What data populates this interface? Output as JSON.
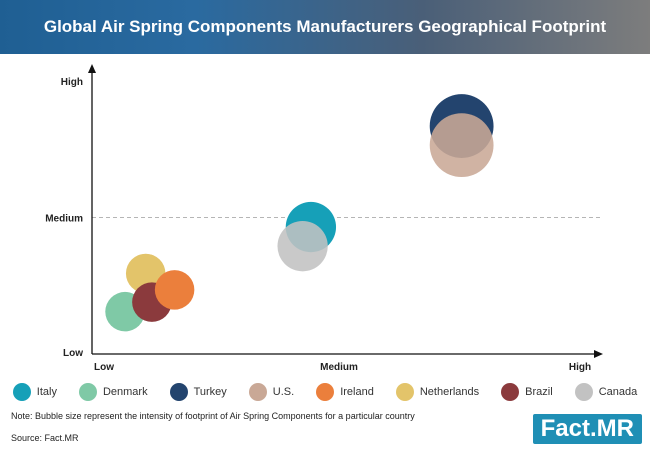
{
  "chart_data": {
    "type": "scatter",
    "title": "Global Air Spring Components Manufacturers Geographical Footprint",
    "x_ticks": [
      "Low",
      "Medium",
      "High"
    ],
    "y_ticks": [
      "Low",
      "Medium",
      "High"
    ],
    "xlim": [
      0,
      2
    ],
    "ylim": [
      0,
      2
    ],
    "reference_line_y": 1,
    "grid": false,
    "legend_position": "bottom",
    "series": [
      {
        "name": "Italy",
        "color": "#16a0b8",
        "x": 1.06,
        "y": 0.93,
        "size": 0.9
      },
      {
        "name": "Denmark",
        "color": "#7fc9a6",
        "x": 0.16,
        "y": 0.31,
        "size": 0.5
      },
      {
        "name": "Turkey",
        "color": "#23446e",
        "x": 1.79,
        "y": 1.67,
        "size": 1.4
      },
      {
        "name": "U.S.",
        "color": "#c9a896",
        "x": 1.79,
        "y": 1.53,
        "size": 1.4
      },
      {
        "name": "Ireland",
        "color": "#eb7f3c",
        "x": 0.4,
        "y": 0.47,
        "size": 0.5
      },
      {
        "name": "Netherlands",
        "color": "#e3c46a",
        "x": 0.26,
        "y": 0.59,
        "size": 0.5
      },
      {
        "name": "Brazil",
        "color": "#8b3a3d",
        "x": 0.29,
        "y": 0.38,
        "size": 0.5
      },
      {
        "name": "Canada",
        "color": "#c2c2c2",
        "x": 1.02,
        "y": 0.79,
        "size": 0.9
      }
    ]
  },
  "note": "Note: Bubble size represent the intensity of footprint of Air Spring Components for a particular country",
  "source": "Source: Fact.MR",
  "logo": {
    "left": "Fact",
    "dot": ".",
    "right": "MR"
  }
}
